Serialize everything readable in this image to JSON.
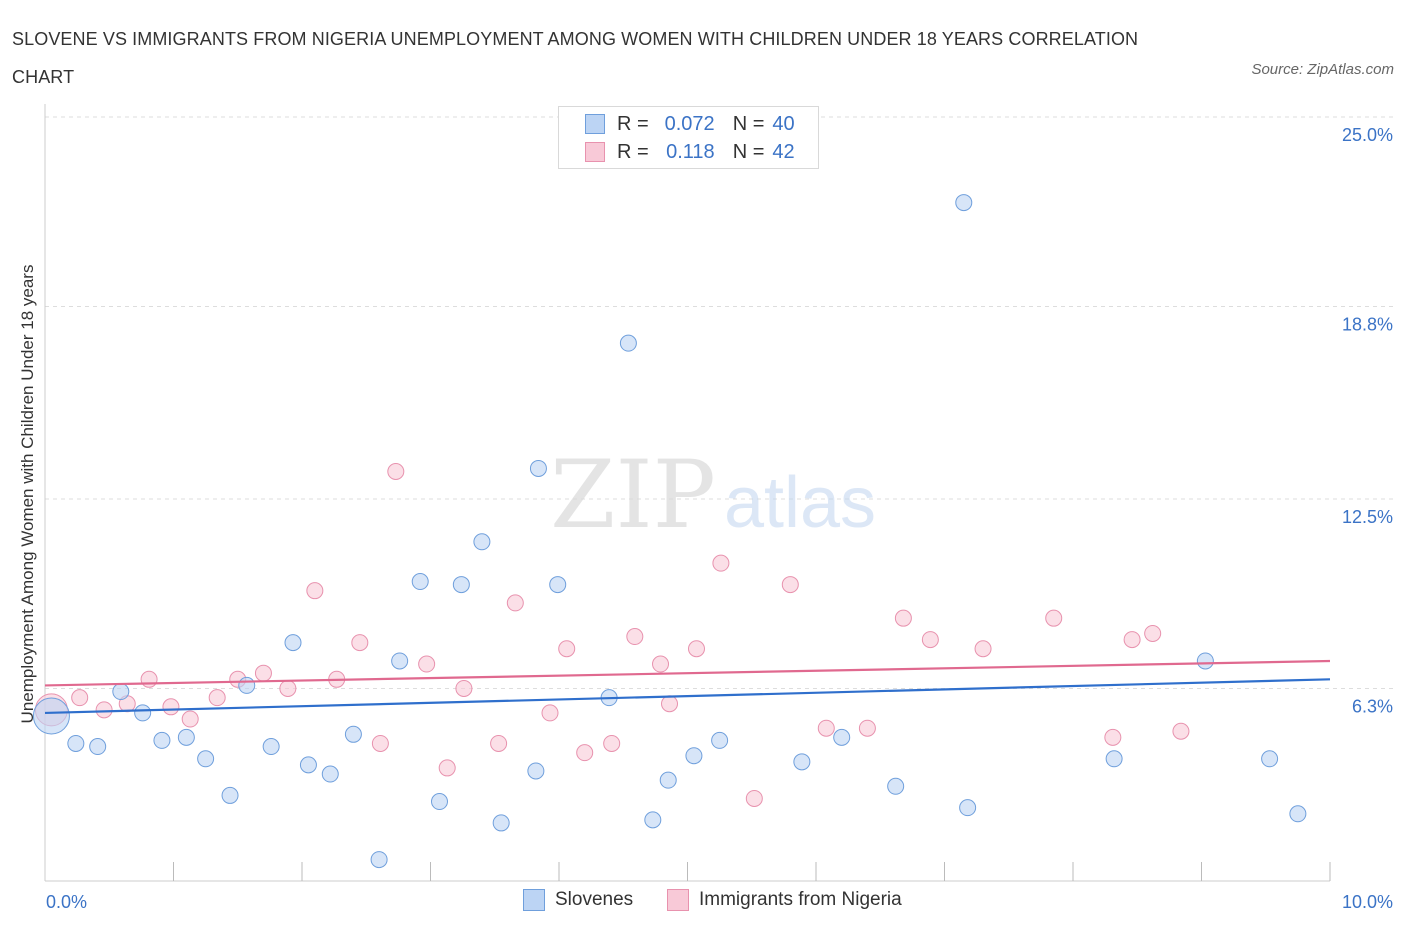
{
  "title": "SLOVENE VS IMMIGRANTS FROM NIGERIA UNEMPLOYMENT AMONG WOMEN WITH CHILDREN UNDER 18 YEARS CORRELATION CHART",
  "source": "Source: ZipAtlas.com",
  "watermark": {
    "zip": "ZIP",
    "atlas": "atlas"
  },
  "legend": {
    "r_label": "R =",
    "n_label": "N =",
    "series": [
      {
        "r": "0.072",
        "n": "40"
      },
      {
        "r": "0.118",
        "n": "42"
      }
    ]
  },
  "bottom_legend": [
    "Slovenes",
    "Immigrants from Nigeria"
  ],
  "colors": {
    "blue_fill": "#bcd4f4",
    "blue_stroke": "#6f9fdc",
    "blue_line": "#2f6fcc",
    "pink_fill": "#f8c9d7",
    "pink_stroke": "#e892ae",
    "pink_line": "#e0698f",
    "tick_label": "#3b73c6",
    "grid": "#dddddd"
  },
  "chart_data": {
    "type": "scatter",
    "title": "SLOVENE VS IMMIGRANTS FROM NIGERIA UNEMPLOYMENT AMONG WOMEN WITH CHILDREN UNDER 18 YEARS CORRELATION CHART",
    "xlabel": "",
    "ylabel": "Unemployment Among Women with Children Under 18 years",
    "xlim": [
      0,
      10
    ],
    "ylim": [
      0,
      25
    ],
    "x_tick_labels": [
      "0.0%",
      "10.0%"
    ],
    "y_ticks": [
      6.3,
      12.5,
      18.8,
      25.0
    ],
    "y_tick_labels": [
      "6.3%",
      "12.5%",
      "18.8%",
      "25.0%"
    ],
    "grid": true,
    "legend_position": "top-center",
    "series": [
      {
        "name": "Slovenes",
        "r": 0.072,
        "n": 40,
        "trend": [
          [
            0,
            5.5
          ],
          [
            10,
            6.6
          ]
        ],
        "points": [
          [
            0.05,
            5.4,
            "large"
          ],
          [
            0.24,
            4.5
          ],
          [
            0.41,
            4.4
          ],
          [
            0.59,
            6.2
          ],
          [
            0.76,
            5.5
          ],
          [
            0.91,
            4.6
          ],
          [
            1.1,
            4.7
          ],
          [
            1.25,
            4.0
          ],
          [
            1.44,
            2.8
          ],
          [
            1.57,
            6.4
          ],
          [
            1.76,
            4.4
          ],
          [
            1.93,
            7.8
          ],
          [
            2.05,
            3.8
          ],
          [
            2.22,
            3.5
          ],
          [
            2.4,
            4.8
          ],
          [
            2.6,
            0.7
          ],
          [
            2.76,
            7.2
          ],
          [
            2.92,
            9.8
          ],
          [
            3.07,
            2.6
          ],
          [
            3.24,
            9.7
          ],
          [
            3.4,
            11.1
          ],
          [
            3.55,
            1.9
          ],
          [
            3.82,
            3.6
          ],
          [
            3.84,
            13.5
          ],
          [
            3.99,
            9.7
          ],
          [
            4.39,
            6.0
          ],
          [
            4.54,
            17.6
          ],
          [
            4.73,
            2.0
          ],
          [
            4.85,
            3.3
          ],
          [
            5.05,
            4.1
          ],
          [
            5.25,
            4.6
          ],
          [
            5.89,
            3.9
          ],
          [
            6.2,
            4.7
          ],
          [
            6.62,
            3.1
          ],
          [
            7.15,
            22.2
          ],
          [
            7.18,
            2.4
          ],
          [
            8.32,
            4.0
          ],
          [
            9.03,
            7.2
          ],
          [
            9.53,
            4.0
          ],
          [
            9.75,
            2.2
          ]
        ]
      },
      {
        "name": "Immigrants from Nigeria",
        "r": 0.118,
        "n": 42,
        "trend": [
          [
            0,
            6.4
          ],
          [
            10,
            7.2
          ]
        ],
        "points": [
          [
            0.05,
            5.6,
            "large"
          ],
          [
            0.27,
            6.0
          ],
          [
            0.46,
            5.6
          ],
          [
            0.64,
            5.8
          ],
          [
            0.81,
            6.6
          ],
          [
            0.98,
            5.7
          ],
          [
            1.13,
            5.3
          ],
          [
            1.34,
            6.0
          ],
          [
            1.5,
            6.6
          ],
          [
            1.7,
            6.8
          ],
          [
            1.89,
            6.3
          ],
          [
            2.1,
            9.5
          ],
          [
            2.27,
            6.6
          ],
          [
            2.45,
            7.8
          ],
          [
            2.61,
            4.5
          ],
          [
            2.73,
            13.4
          ],
          [
            2.97,
            7.1
          ],
          [
            3.13,
            3.7
          ],
          [
            3.26,
            6.3
          ],
          [
            3.53,
            4.5
          ],
          [
            3.66,
            9.1
          ],
          [
            3.93,
            5.5
          ],
          [
            4.06,
            7.6
          ],
          [
            4.2,
            4.2
          ],
          [
            4.41,
            4.5
          ],
          [
            4.59,
            8.0
          ],
          [
            4.79,
            7.1
          ],
          [
            4.86,
            5.8
          ],
          [
            5.07,
            7.6
          ],
          [
            5.26,
            10.4
          ],
          [
            5.52,
            2.7
          ],
          [
            5.8,
            9.7
          ],
          [
            6.08,
            5.0
          ],
          [
            6.4,
            5.0
          ],
          [
            6.68,
            8.6
          ],
          [
            6.89,
            7.9
          ],
          [
            7.3,
            7.6
          ],
          [
            7.85,
            8.6
          ],
          [
            8.31,
            4.7
          ],
          [
            8.46,
            7.9
          ],
          [
            8.62,
            8.1
          ],
          [
            8.84,
            4.9
          ]
        ]
      }
    ]
  }
}
